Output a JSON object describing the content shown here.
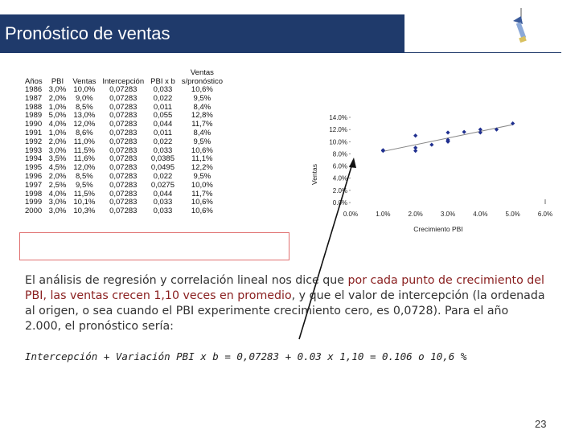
{
  "title": "Pronóstico de ventas",
  "table": {
    "headers": [
      "Años",
      "PBI",
      "Ventas",
      "Intercepción",
      "PBI x b",
      "Ventas s/pronóstico"
    ],
    "header_last_line1": "Ventas",
    "header_last_line2": "s/pronóstico",
    "rows": [
      [
        "1986",
        "3,0%",
        "10,0%",
        "0,07283",
        "0,033",
        "10,6%"
      ],
      [
        "1987",
        "2,0%",
        "9,0%",
        "0,07283",
        "0,022",
        "9,5%"
      ],
      [
        "1988",
        "1,0%",
        "8,5%",
        "0,07283",
        "0,011",
        "8,4%"
      ],
      [
        "1989",
        "5,0%",
        "13,0%",
        "0,07283",
        "0,055",
        "12,8%"
      ],
      [
        "1990",
        "4,0%",
        "12,0%",
        "0,07283",
        "0,044",
        "11,7%"
      ],
      [
        "1991",
        "1,0%",
        "8,6%",
        "0,07283",
        "0,011",
        "8,4%"
      ],
      [
        "1992",
        "2,0%",
        "11,0%",
        "0,07283",
        "0,022",
        "9,5%"
      ],
      [
        "1993",
        "3,0%",
        "11,5%",
        "0,07283",
        "0,033",
        "10,6%"
      ],
      [
        "1994",
        "3,5%",
        "11,6%",
        "0,07283",
        "0,0385",
        "11,1%"
      ],
      [
        "1995",
        "4,5%",
        "12,0%",
        "0,07283",
        "0,0495",
        "12,2%"
      ],
      [
        "1996",
        "2,0%",
        "8,5%",
        "0,07283",
        "0,022",
        "9,5%"
      ],
      [
        "1997",
        "2,5%",
        "9,5%",
        "0,07283",
        "0,0275",
        "10,0%"
      ],
      [
        "1998",
        "4,0%",
        "11,5%",
        "0,07283",
        "0,044",
        "11,7%"
      ],
      [
        "1999",
        "3,0%",
        "10,1%",
        "0,07283",
        "0,033",
        "10,6%"
      ],
      [
        "2000",
        "3,0%",
        "10,3%",
        "0,07283",
        "0,033",
        "10,6%"
      ]
    ]
  },
  "chart_data": {
    "type": "scatter",
    "xlabel": "Crecimiento PBI",
    "ylabel": "Ventas",
    "xlim": [
      0,
      6
    ],
    "ylim": [
      0,
      14
    ],
    "x_ticks": [
      "0.0%",
      "1.0%",
      "2.0%",
      "3.0%",
      "4.0%",
      "5.0%",
      "6.0%"
    ],
    "y_ticks": [
      "0.0%",
      "2.0%",
      "4.0%",
      "6.0%",
      "8.0%",
      "10.0%",
      "12.0%",
      "14.0%"
    ],
    "points": [
      [
        3.0,
        10.0
      ],
      [
        2.0,
        9.0
      ],
      [
        1.0,
        8.5
      ],
      [
        5.0,
        13.0
      ],
      [
        4.0,
        12.0
      ],
      [
        1.0,
        8.6
      ],
      [
        2.0,
        11.0
      ],
      [
        3.0,
        11.5
      ],
      [
        3.5,
        11.6
      ],
      [
        4.5,
        12.0
      ],
      [
        2.0,
        8.5
      ],
      [
        2.5,
        9.5
      ],
      [
        4.0,
        11.5
      ],
      [
        3.0,
        10.1
      ],
      [
        3.0,
        10.3
      ]
    ],
    "trendline": [
      [
        1.0,
        8.4
      ],
      [
        5.0,
        12.8
      ]
    ],
    "grid": false
  },
  "body": {
    "p1": "El análisis de regresión y correlación lineal nos dice que ",
    "p2": "por cada punto de crecimiento del PBI, las ventas crecen 1,10 veces en promedio",
    "p3": ", y que el valor de intercepción (la ordenada al origen, o sea cuando el PBI experimente crecimiento cero, es 0,0728). Para el año 2.000, el pronóstico sería:"
  },
  "formula": "Intercepción + Variación PBI x b = 0,07283 + 0.03 x 1,10 = 0.106 o 10,6 %",
  "page_number": "23",
  "colors": {
    "title_bg": "#1f3a6b",
    "highlight": "#e07070",
    "points": "#1f2f8f"
  }
}
